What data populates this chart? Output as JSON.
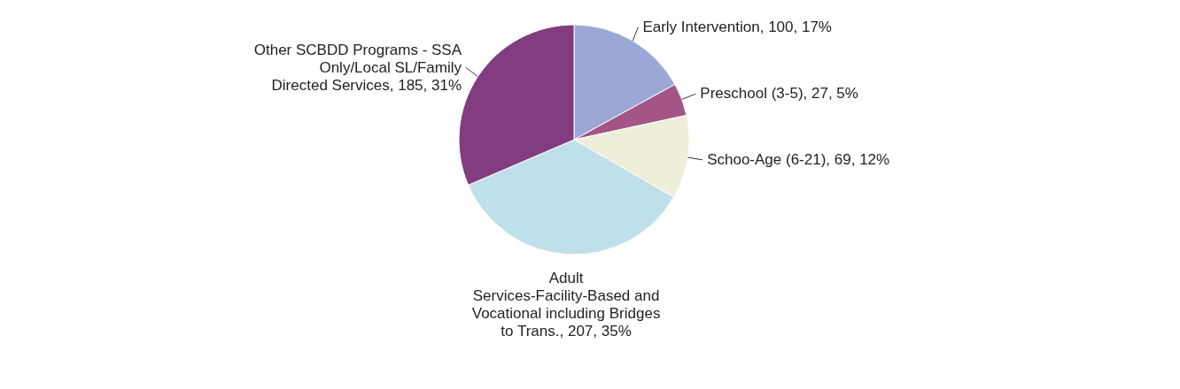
{
  "chart_data": {
    "type": "pie",
    "categories": [
      "Early Intervention, 100, 17%",
      "Preschool (3-5), 27, 5%",
      "Schoo-Age (6-21), 69, 12%",
      "Adult Services-Facility-Based and Vocational including Bridges to Trans., 207, 35%",
      "Other SCBDD Programs - SSA Only/Local SL/Family Directed Services, 185, 31%"
    ],
    "values": [
      100,
      27,
      69,
      207,
      185
    ],
    "colors": [
      "#9ba8d6",
      "#a35686",
      "#efeed8",
      "#bfe0ea",
      "#813d80"
    ]
  }
}
